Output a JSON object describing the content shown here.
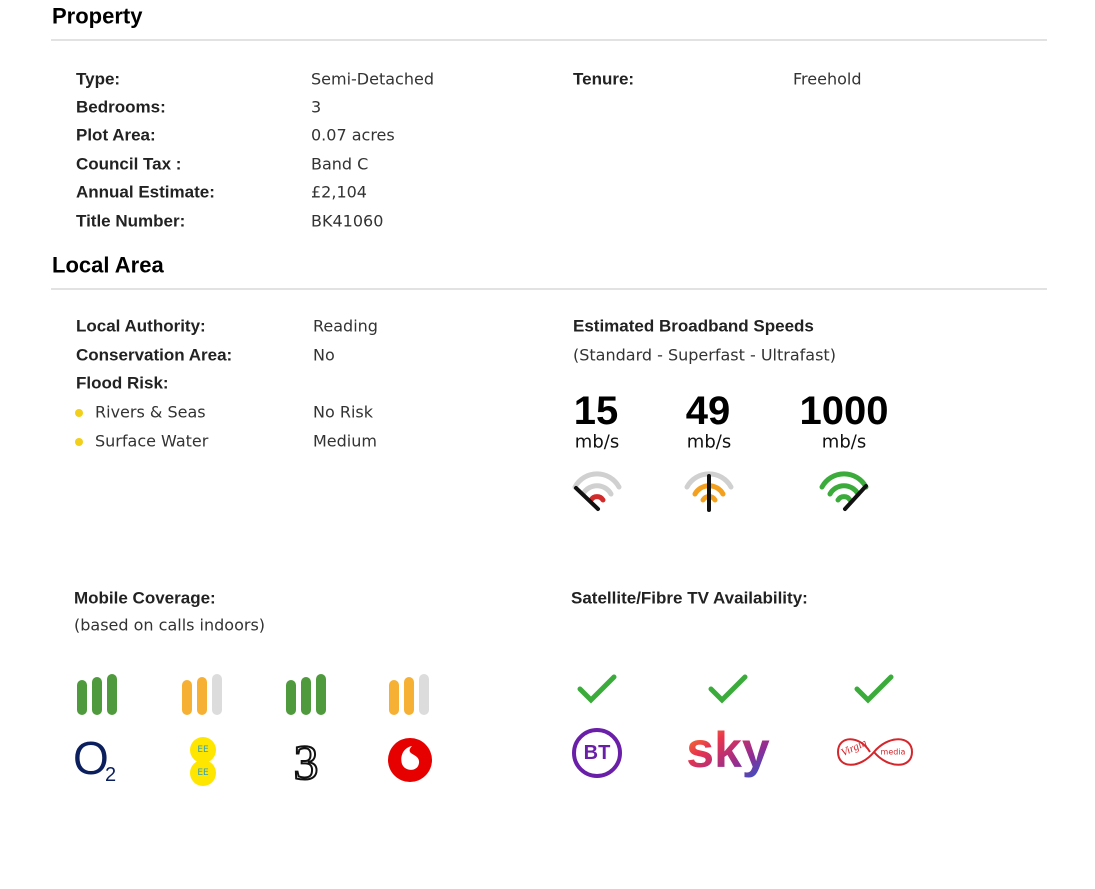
{
  "property": {
    "title": "Property",
    "rows": [
      {
        "label": "Type:",
        "value": "Semi-Detached"
      },
      {
        "label": "Bedrooms:",
        "value": "3"
      },
      {
        "label": "Plot Area:",
        "value": "0.07 acres"
      },
      {
        "label": "Council Tax :",
        "value": "Band C"
      },
      {
        "label": "Annual Estimate:",
        "value": "£2,104"
      },
      {
        "label": "Title Number:",
        "value": "BK41060"
      }
    ],
    "tenure": {
      "label": "Tenure:",
      "value": "Freehold"
    }
  },
  "local_area": {
    "title": "Local Area",
    "rows": [
      {
        "label": "Local Authority:",
        "value": "Reading"
      },
      {
        "label": "Conservation Area:",
        "value": "No"
      }
    ],
    "flood_risk": {
      "label": "Flood Risk:",
      "items": [
        {
          "label": "Rivers & Seas",
          "value": "No Risk"
        },
        {
          "label": "Surface Water",
          "value": "Medium"
        }
      ]
    }
  },
  "broadband": {
    "title": "Estimated Broadband Speeds",
    "subtitle": "(Standard - Superfast - Ultrafast)",
    "speeds": [
      {
        "value": 15,
        "unit": "mb/s"
      },
      {
        "value": 49,
        "unit": "mb/s"
      },
      {
        "value": 1000,
        "unit": "mb/s"
      }
    ]
  },
  "mobile": {
    "title": "Mobile Coverage:",
    "subtitle": "(based on calls indoors)",
    "logos": {
      "o2": "O",
      "o2_sub": "2",
      "ee_top": "EE",
      "ee_bottom": "EE",
      "three": "3"
    }
  },
  "tv": {
    "title": "Satellite/Fibre TV Availability:",
    "logos": {
      "bt": "BT",
      "sky": "sky",
      "virgin": "Virgin",
      "virgin_sub": "media"
    }
  }
}
